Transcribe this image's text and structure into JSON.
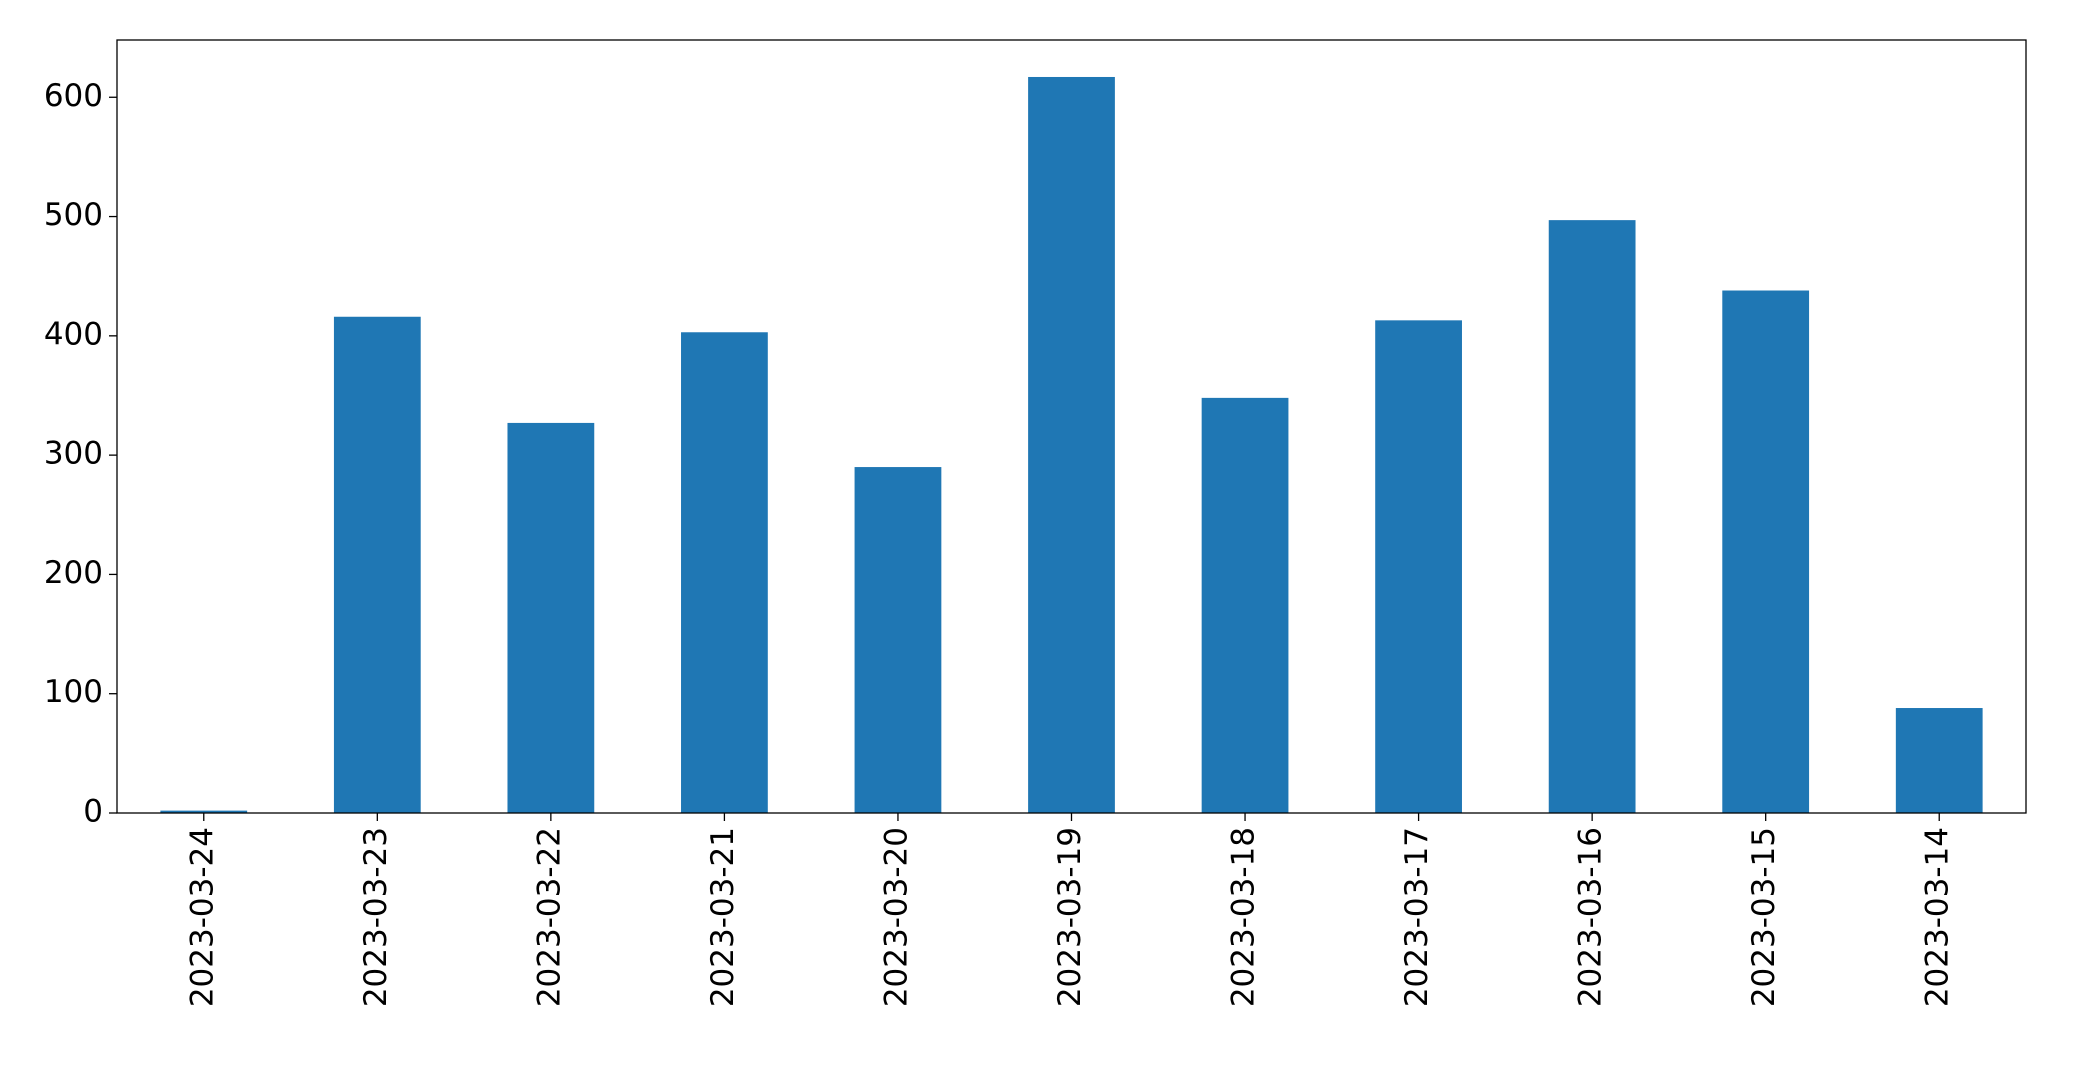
{
  "chart_data": {
    "type": "bar",
    "categories": [
      "2023-03-24",
      "2023-03-23",
      "2023-03-22",
      "2023-03-21",
      "2023-03-20",
      "2023-03-19",
      "2023-03-18",
      "2023-03-17",
      "2023-03-16",
      "2023-03-15",
      "2023-03-14"
    ],
    "values": [
      2,
      416,
      327,
      403,
      290,
      617,
      348,
      413,
      497,
      438,
      88
    ],
    "color": "#1f77b4",
    "ylim": [
      0,
      648
    ],
    "yticks": [
      0,
      100,
      200,
      300,
      400,
      500,
      600
    ],
    "grid": false
  }
}
